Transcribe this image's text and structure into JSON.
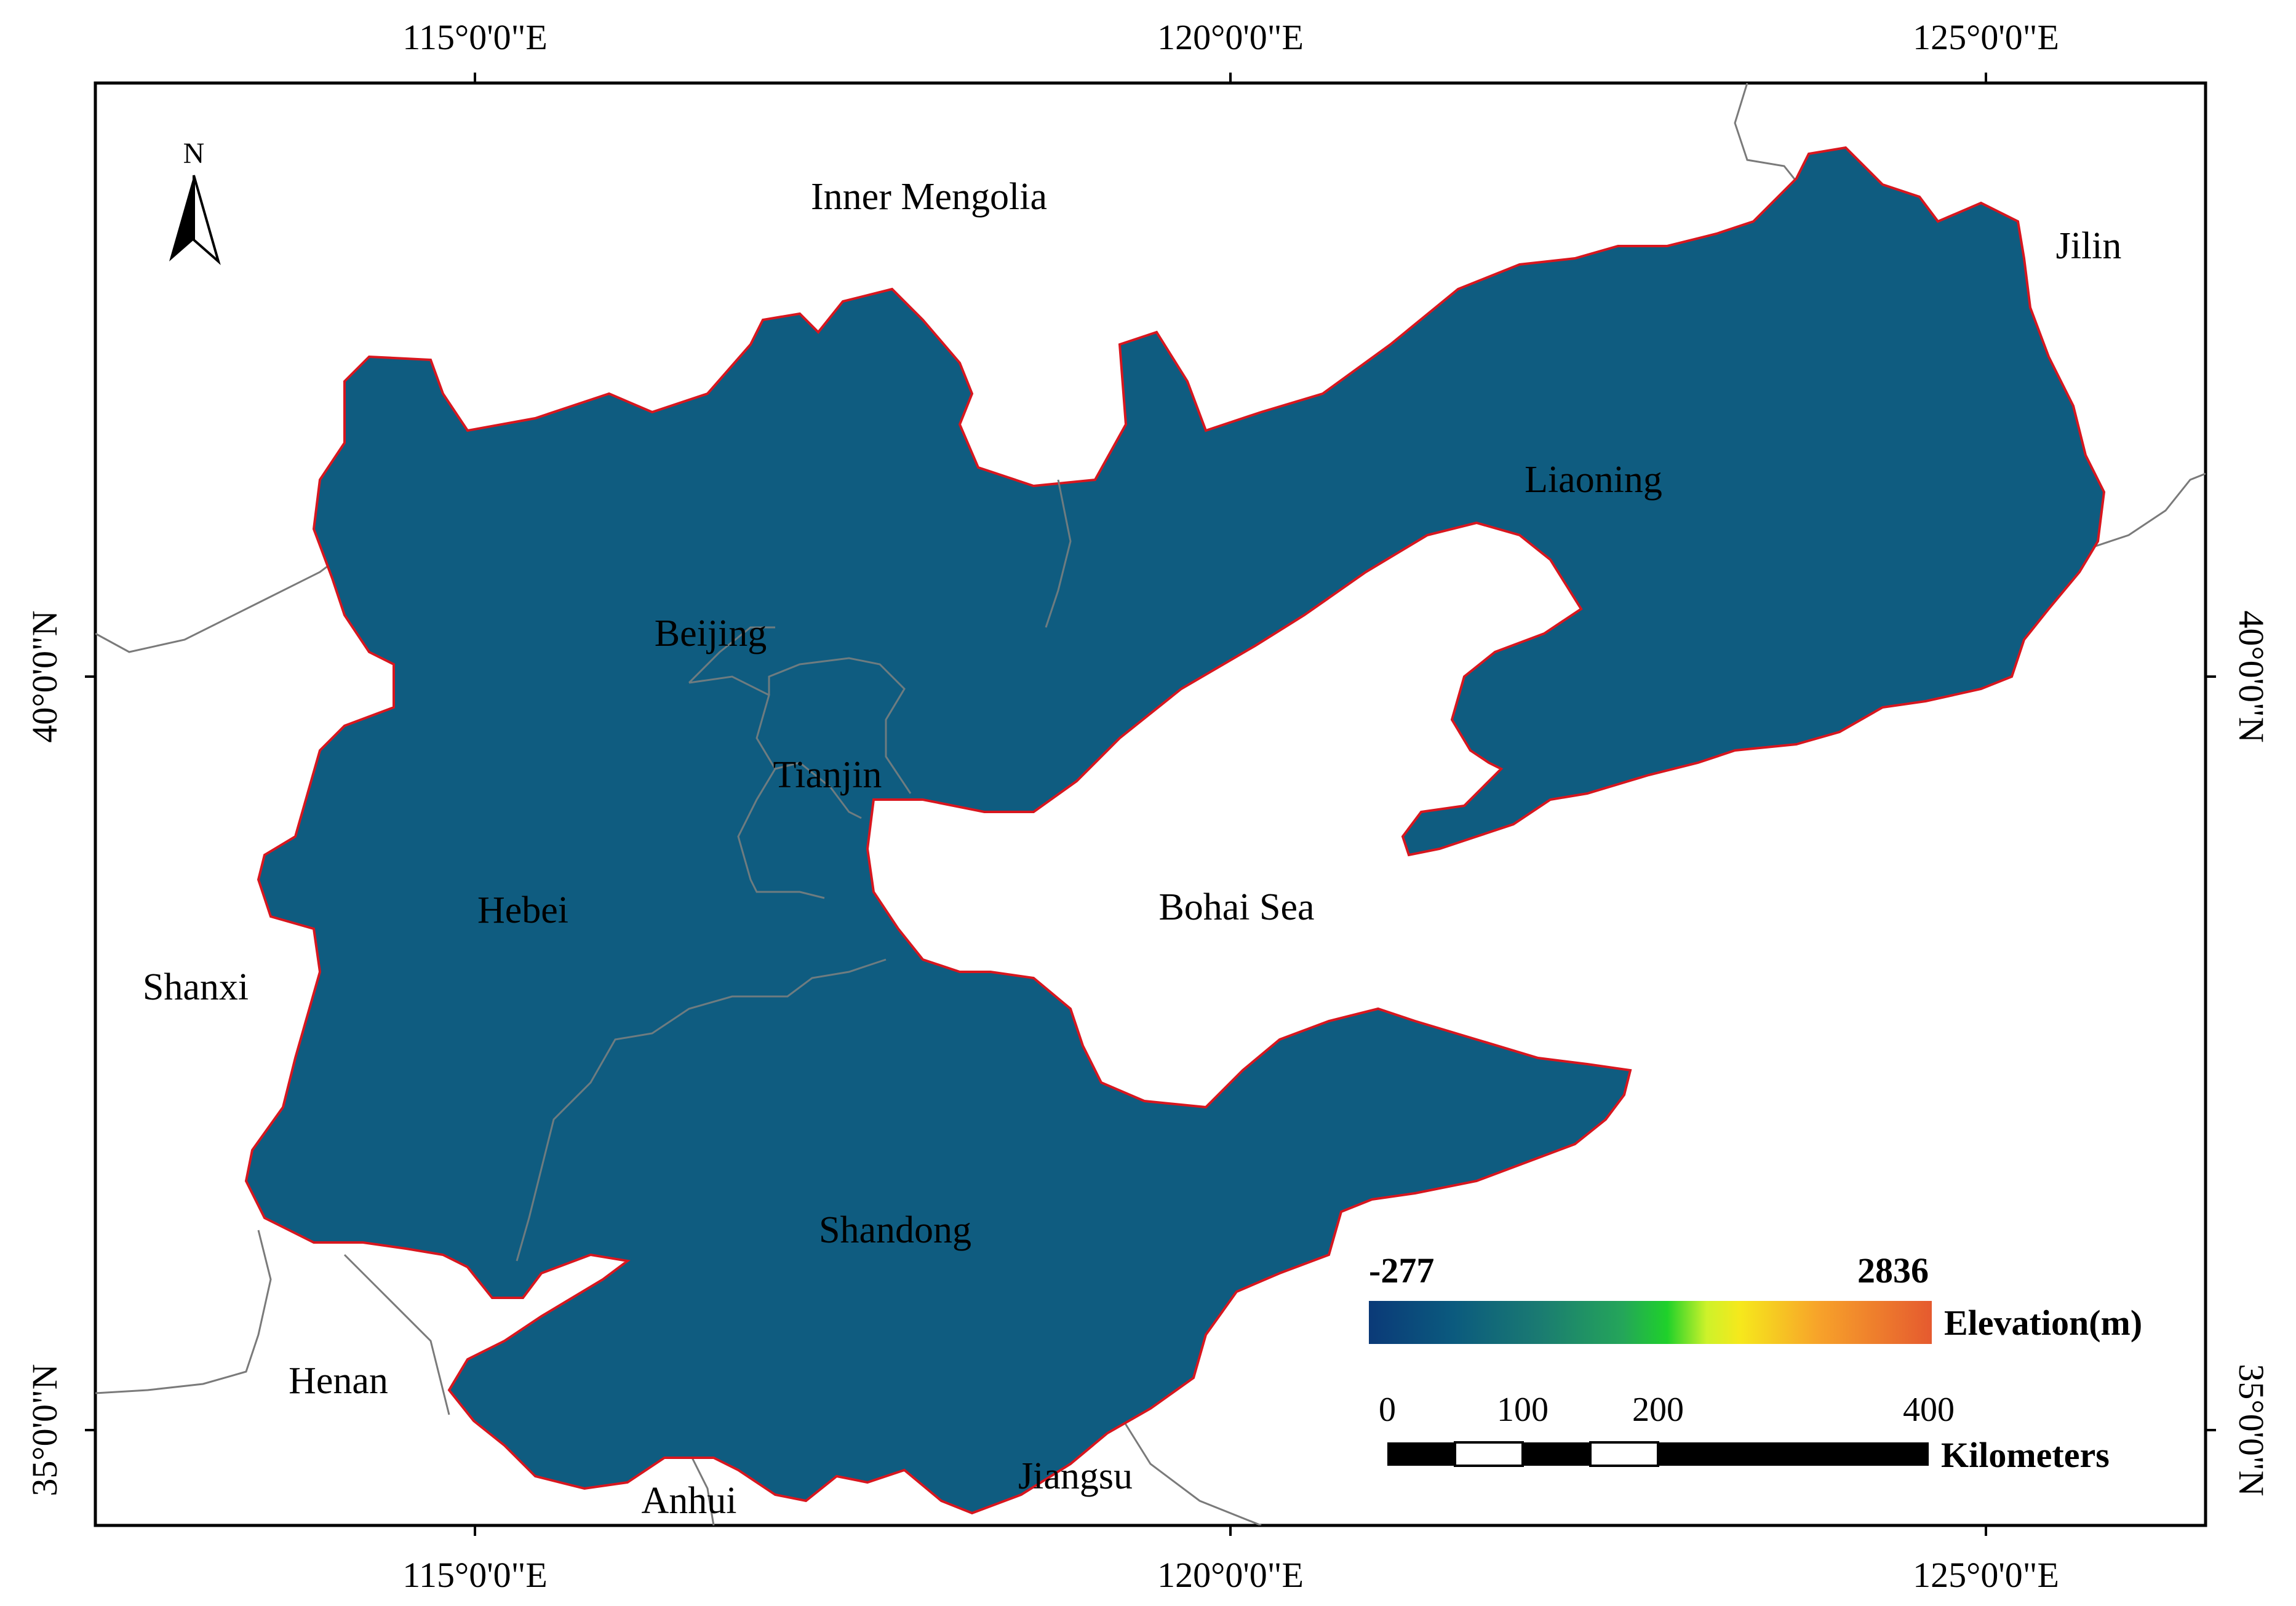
{
  "map": {
    "ticks": {
      "top": [
        "115°0'0\"E",
        "120°0'0\"E",
        "125°0'0\"E"
      ],
      "bottom": [
        "115°0'0\"E",
        "120°0'0\"E",
        "125°0'0\"E"
      ],
      "left": [
        "40°0'0\"N",
        "35°0'0\"N"
      ],
      "right": [
        "40°0'0\"N",
        "35°0'0\"N"
      ]
    },
    "north_arrow": {
      "label": "N"
    },
    "places": {
      "inner_mongolia": "Inner Mengolia",
      "jilin": "Jilin",
      "liaoning": "Liaoning",
      "beijing": "Beijing",
      "tianjin": "Tianjin",
      "hebei": "Hebei",
      "bohai_sea": "Bohai Sea",
      "shanxi": "Shanxi",
      "shandong": "Shandong",
      "henan": "Henan",
      "anhui": "Anhui",
      "jiangsu": "Jiangsu"
    },
    "elevation_legend": {
      "min_label": "-277",
      "max_label": "2836",
      "title": "Elevation(m)",
      "colors": [
        "#0b3a78",
        "#0b5a7e",
        "#1a7a72",
        "#24a55a",
        "#1fd12a",
        "#cdf22a",
        "#f6e81c",
        "#f7a22a",
        "#e55a2f"
      ]
    },
    "scale_bar": {
      "labels": [
        "0",
        "100",
        "200",
        "400"
      ],
      "unit": "Kilometers"
    },
    "colors": {
      "boundary": "#d8161e",
      "province_line": "#7a7a7a",
      "frame": "#000000"
    }
  }
}
